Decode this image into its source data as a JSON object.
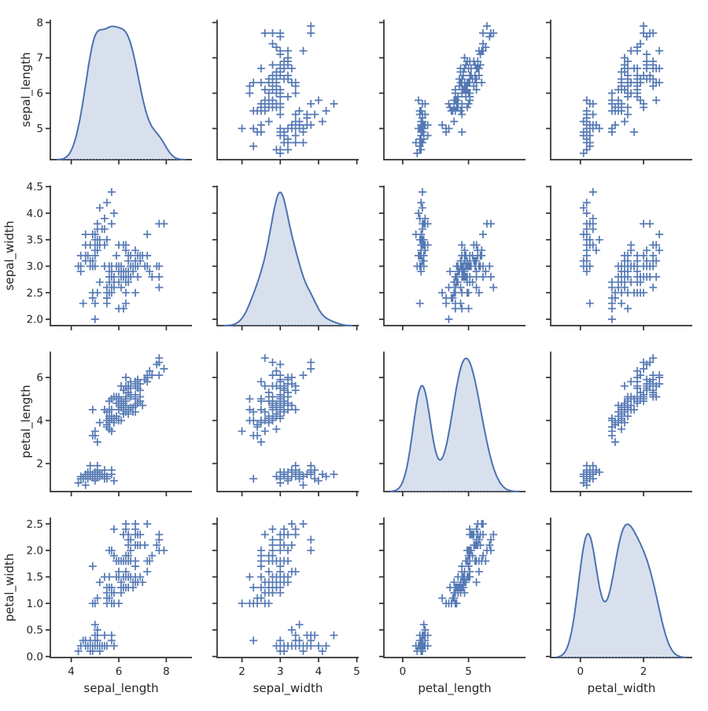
{
  "figure": {
    "kind": "seaborn-pairplot",
    "background": "#ffffff"
  },
  "chart_data": {
    "type": "scatter",
    "subtype": "pairplot-scatter-matrix",
    "title": "",
    "variables": [
      "sepal_length",
      "sepal_width",
      "petal_length",
      "petal_width"
    ],
    "diagonal": "kde",
    "marker_symbol": "+",
    "legend": "none",
    "grid": false,
    "colors": {
      "series": "#4c72b0",
      "kde_fill": "rgba(76,114,176,0.22)",
      "axes": "#2e2e2e",
      "text": "#262626",
      "background": "#ffffff"
    },
    "axes": {
      "x_ranges": [
        [
          3.12,
          9.08
        ],
        [
          1.35,
          5.05
        ],
        [
          -1.43,
          9.33
        ],
        [
          -0.94,
          3.54
        ]
      ],
      "y_ranges": [
        [
          4.12,
          8.08
        ],
        [
          1.88,
          4.52
        ],
        [
          0.7,
          7.2
        ],
        [
          -0.02,
          2.62
        ]
      ],
      "x_tick_values": [
        [
          4,
          6,
          8
        ],
        [
          2,
          3,
          4,
          5
        ],
        [
          0,
          5
        ],
        [
          0,
          2
        ]
      ],
      "x_tick_labels": [
        [
          "4",
          "6",
          "8"
        ],
        [
          "2",
          "3",
          "4",
          "5"
        ],
        [
          "0",
          "5"
        ],
        [
          "0",
          "2"
        ]
      ],
      "y_tick_values": [
        [
          5,
          6,
          7,
          8
        ],
        [
          2.0,
          2.5,
          3.0,
          3.5,
          4.0,
          4.5
        ],
        [
          2,
          4,
          6
        ],
        [
          0.0,
          0.5,
          1.0,
          1.5,
          2.0,
          2.5
        ]
      ],
      "y_tick_labels": [
        [
          "5",
          "6",
          "7",
          "8"
        ],
        [
          "2.0",
          "2.5",
          "3.0",
          "3.5",
          "4.0",
          "4.5"
        ],
        [
          "2",
          "4",
          "6"
        ],
        [
          "0.0",
          "0.5",
          "1.0",
          "1.5",
          "2.0",
          "2.5"
        ]
      ]
    },
    "kde": {
      "bandwidth_rule": "scott",
      "cut": 3
    },
    "data": {
      "sepal_length": [
        5.1,
        4.9,
        4.7,
        4.6,
        5.0,
        5.4,
        4.6,
        5.0,
        4.4,
        4.9,
        5.4,
        4.8,
        4.8,
        4.3,
        5.8,
        5.7,
        5.4,
        5.1,
        5.7,
        5.1,
        5.4,
        5.1,
        4.6,
        5.1,
        4.8,
        5.0,
        5.0,
        5.2,
        5.2,
        4.7,
        4.8,
        5.4,
        5.2,
        5.5,
        4.9,
        5.0,
        5.5,
        4.9,
        4.4,
        5.1,
        5.0,
        4.5,
        4.4,
        5.0,
        5.1,
        4.8,
        5.1,
        4.6,
        5.3,
        5.0,
        7.0,
        6.4,
        6.9,
        5.5,
        6.5,
        5.7,
        6.3,
        4.9,
        6.6,
        5.2,
        5.0,
        5.9,
        6.0,
        6.1,
        5.6,
        6.7,
        5.6,
        5.8,
        6.2,
        5.6,
        5.9,
        6.1,
        6.3,
        6.1,
        6.4,
        6.6,
        6.8,
        6.7,
        6.0,
        5.7,
        5.5,
        5.5,
        5.8,
        6.0,
        5.4,
        6.0,
        6.7,
        6.3,
        5.6,
        5.5,
        5.5,
        6.1,
        5.8,
        5.0,
        5.6,
        5.7,
        5.7,
        6.2,
        5.1,
        5.7,
        6.3,
        5.8,
        7.1,
        6.3,
        6.5,
        7.6,
        4.9,
        7.3,
        6.7,
        7.2,
        6.5,
        6.4,
        6.8,
        5.7,
        5.8,
        6.4,
        6.5,
        7.7,
        7.7,
        6.0,
        6.9,
        5.6,
        7.7,
        6.3,
        6.7,
        7.2,
        6.2,
        6.1,
        6.4,
        7.2,
        7.4,
        7.9,
        6.4,
        6.3,
        6.1,
        7.7,
        6.3,
        6.4,
        6.0,
        6.9,
        6.7,
        6.9,
        5.8,
        6.8,
        6.7,
        6.7,
        6.3,
        6.5,
        6.2,
        5.9
      ],
      "sepal_width": [
        3.5,
        3.0,
        3.2,
        3.1,
        3.6,
        3.9,
        3.4,
        3.4,
        2.9,
        3.1,
        3.7,
        3.4,
        3.0,
        3.0,
        4.0,
        4.4,
        3.9,
        3.5,
        3.8,
        3.8,
        3.4,
        3.7,
        3.6,
        3.3,
        3.4,
        3.0,
        3.4,
        3.5,
        3.4,
        3.2,
        3.1,
        3.4,
        4.1,
        4.2,
        3.1,
        3.2,
        3.5,
        3.6,
        3.0,
        3.4,
        3.5,
        2.3,
        3.2,
        3.5,
        3.8,
        3.0,
        3.8,
        3.2,
        3.7,
        3.3,
        3.2,
        3.2,
        3.1,
        2.3,
        2.8,
        2.8,
        3.3,
        2.4,
        2.9,
        2.7,
        2.0,
        3.0,
        2.2,
        2.9,
        2.9,
        3.1,
        3.0,
        2.7,
        2.2,
        2.5,
        3.2,
        2.8,
        2.5,
        2.8,
        2.9,
        3.0,
        2.8,
        3.0,
        2.9,
        2.6,
        2.4,
        2.4,
        2.7,
        2.7,
        3.0,
        3.4,
        3.1,
        2.3,
        3.0,
        2.5,
        2.6,
        3.0,
        2.6,
        2.3,
        2.7,
        3.0,
        2.9,
        2.9,
        2.5,
        2.8,
        3.3,
        2.7,
        3.0,
        2.9,
        3.0,
        3.0,
        2.5,
        2.9,
        2.5,
        3.6,
        3.2,
        2.7,
        3.0,
        2.5,
        2.8,
        3.2,
        3.0,
        3.8,
        2.6,
        2.2,
        3.2,
        2.8,
        2.8,
        2.7,
        3.3,
        3.2,
        2.8,
        3.0,
        2.8,
        3.0,
        2.8,
        3.8,
        2.8,
        2.8,
        2.6,
        3.0,
        3.4,
        3.1,
        3.0,
        3.1,
        3.1,
        3.1,
        2.7,
        3.2,
        3.3,
        3.0,
        2.5,
        3.0,
        3.4,
        3.0
      ],
      "petal_length": [
        1.4,
        1.4,
        1.3,
        1.5,
        1.4,
        1.7,
        1.4,
        1.5,
        1.4,
        1.5,
        1.5,
        1.6,
        1.4,
        1.1,
        1.2,
        1.5,
        1.3,
        1.4,
        1.7,
        1.5,
        1.7,
        1.5,
        1.0,
        1.7,
        1.9,
        1.6,
        1.6,
        1.5,
        1.4,
        1.6,
        1.6,
        1.5,
        1.5,
        1.4,
        1.5,
        1.2,
        1.3,
        1.4,
        1.3,
        1.5,
        1.3,
        1.3,
        1.3,
        1.6,
        1.9,
        1.4,
        1.6,
        1.4,
        1.5,
        1.4,
        4.7,
        4.5,
        4.9,
        4.0,
        4.6,
        4.5,
        4.7,
        3.3,
        4.6,
        3.9,
        3.5,
        4.2,
        4.0,
        4.7,
        3.6,
        4.4,
        4.5,
        4.1,
        4.5,
        3.9,
        4.8,
        4.0,
        4.9,
        4.7,
        4.3,
        4.4,
        4.8,
        5.0,
        4.5,
        3.5,
        3.8,
        3.7,
        3.9,
        5.1,
        4.5,
        4.5,
        4.7,
        4.4,
        4.1,
        4.0,
        4.4,
        4.6,
        4.0,
        3.3,
        4.2,
        4.2,
        4.2,
        4.3,
        3.0,
        4.1,
        6.0,
        5.1,
        5.9,
        5.6,
        5.8,
        6.6,
        4.5,
        6.3,
        5.8,
        6.1,
        5.1,
        5.3,
        5.5,
        5.0,
        5.1,
        5.3,
        5.5,
        6.7,
        6.9,
        5.0,
        5.7,
        4.9,
        6.7,
        4.9,
        5.7,
        6.0,
        4.8,
        4.9,
        5.6,
        5.8,
        6.1,
        6.4,
        5.6,
        5.1,
        5.6,
        6.1,
        5.6,
        5.5,
        4.8,
        5.4,
        5.6,
        5.1,
        5.1,
        5.9,
        5.7,
        5.2,
        5.0,
        5.2,
        5.4,
        5.1
      ],
      "petal_width": [
        0.2,
        0.2,
        0.2,
        0.2,
        0.2,
        0.4,
        0.3,
        0.2,
        0.2,
        0.1,
        0.2,
        0.2,
        0.1,
        0.1,
        0.2,
        0.4,
        0.4,
        0.3,
        0.3,
        0.3,
        0.2,
        0.4,
        0.2,
        0.5,
        0.2,
        0.2,
        0.4,
        0.2,
        0.2,
        0.2,
        0.2,
        0.4,
        0.1,
        0.2,
        0.2,
        0.2,
        0.2,
        0.1,
        0.2,
        0.2,
        0.3,
        0.3,
        0.2,
        0.6,
        0.4,
        0.3,
        0.2,
        0.2,
        0.2,
        0.2,
        1.4,
        1.5,
        1.5,
        1.3,
        1.5,
        1.3,
        1.6,
        1.0,
        1.3,
        1.4,
        1.0,
        1.5,
        1.0,
        1.4,
        1.3,
        1.4,
        1.5,
        1.0,
        1.5,
        1.1,
        1.8,
        1.3,
        1.5,
        1.2,
        1.3,
        1.4,
        1.4,
        1.7,
        1.5,
        1.0,
        1.1,
        1.0,
        1.2,
        1.6,
        1.5,
        1.6,
        1.5,
        1.3,
        1.3,
        1.3,
        1.2,
        1.4,
        1.2,
        1.0,
        1.3,
        1.2,
        1.3,
        1.3,
        1.1,
        1.3,
        2.5,
        1.9,
        2.1,
        1.8,
        2.2,
        2.1,
        1.7,
        1.8,
        1.8,
        2.5,
        2.0,
        1.9,
        2.1,
        2.0,
        2.4,
        2.3,
        1.8,
        2.2,
        2.3,
        1.5,
        2.3,
        2.0,
        2.0,
        1.8,
        2.1,
        1.8,
        1.8,
        1.8,
        2.1,
        1.6,
        1.9,
        2.0,
        2.2,
        1.5,
        1.4,
        2.3,
        2.4,
        1.8,
        1.8,
        2.1,
        2.4,
        2.3,
        1.9,
        2.3,
        2.5,
        2.3,
        1.9,
        2.0,
        2.3,
        1.8
      ]
    }
  }
}
